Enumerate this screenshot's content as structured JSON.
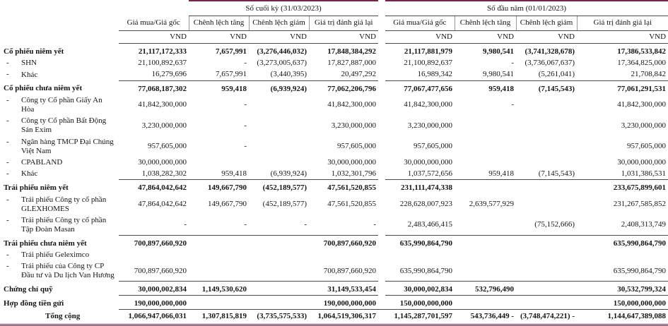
{
  "colors": {
    "accent_line": "#77234a",
    "rule_line": "#4a4a4a"
  },
  "table": {
    "groups": [
      {
        "label": "Số cuối kỳ (31/03/2023)"
      },
      {
        "label": "Số đầu năm (01/01/2023)"
      }
    ],
    "columns": [
      "Giá mua/Giá gốc",
      "Chênh lệch tăng",
      "Chênh lệch giảm",
      "Giá trị đánh giá lại",
      "Giá mua/Giá gốc",
      "Chênh lệch tăng",
      "Chênh lệch giảm",
      "Giá trị đánh giá lại"
    ],
    "unit": "VND",
    "rows": [
      {
        "kind": "group",
        "label": "Cổ phiếu niêm yết",
        "values": [
          "21,117,172,333",
          "7,657,991",
          "(3,276,446,032)",
          "17,848,384,292",
          "21,117,881,979",
          "9,980,541",
          "(3,741,328,678)",
          "17,386,533,842"
        ]
      },
      {
        "kind": "item",
        "label": "SHN",
        "values": [
          "21,100,892,637",
          "-",
          "(3,273,005,637)",
          "17,827,887,000",
          "21,100,892,637",
          "-",
          "(3,736,067,637)",
          "17,364,825,000"
        ]
      },
      {
        "kind": "item",
        "label": "Khác",
        "rule": true,
        "values": [
          "16,279,696",
          "7,657,991",
          "(3,440,395)",
          "20,497,292",
          "16,989,342",
          "9,980,541",
          "(5,261,041)",
          "21,708,842"
        ]
      },
      {
        "kind": "group",
        "label": "Cổ phiếu chưa niêm yết",
        "values": [
          "77,068,187,302",
          "959,418",
          "(6,939,924)",
          "77,062,206,796",
          "77,067,477,656",
          "959,418",
          "(7,145,543)",
          "77,061,291,531"
        ]
      },
      {
        "kind": "item",
        "label": "Công ty Cổ phần Giấy An Hòa",
        "values": [
          "41,842,300,000",
          "-",
          "",
          "41,842,300,000",
          "41,842,300,000",
          "-",
          "",
          "41,842,300,000"
        ]
      },
      {
        "kind": "item",
        "label": "Công ty Cổ phần Bất Động Sản Exim",
        "values": [
          "3,230,000,000",
          "-",
          "",
          "3,230,000,000",
          "3,230,000,000",
          "",
          "",
          "3,230,000,000"
        ]
      },
      {
        "kind": "item",
        "label": "Ngân hàng TMCP Đại Chúng Việt Nam",
        "values": [
          "957,605,000",
          "-",
          "",
          "957,605,000",
          "957,605,000",
          "",
          "",
          "957,605,000"
        ]
      },
      {
        "kind": "item",
        "label": "CPABLAND",
        "values": [
          "30,000,000,000",
          "",
          "",
          "30,000,000,000",
          "30,000,000,000",
          "",
          "",
          "30,000,000,000"
        ]
      },
      {
        "kind": "item",
        "label": "Khác",
        "rule": true,
        "values": [
          "1,038,282,302",
          "959,418",
          "(6,939,924)",
          "1,032,301,796",
          "1,037,572,656",
          "959,418",
          "(7,145,543)",
          "1,031,386,531"
        ]
      },
      {
        "kind": "group",
        "label": "Trái phiếu niêm yết",
        "values": [
          "47,864,042,642",
          "149,667,790",
          "(452,189,577)",
          "47,561,520,855",
          "231,111,474,338",
          "",
          "",
          "233,675,899,601"
        ]
      },
      {
        "kind": "item",
        "label": "Trái phiếu Công ty cổ phần GLEXHOMES",
        "values": [
          "47,864,042,642",
          "149,667,790",
          "(452,189,577)",
          "47,561,520,855",
          "228,628,007,923",
          "2,639,577,929",
          "",
          "231,267,585,852"
        ]
      },
      {
        "kind": "item",
        "label": "Trái phiếu Công ty cổ phần Tập Đoàn Masan",
        "rule": true,
        "values": [
          "-",
          "-",
          "-",
          "-",
          "2,483,466,415",
          "",
          "(75,152,666)",
          "2,408,313,749"
        ]
      },
      {
        "kind": "group",
        "label": "Trái phiếu chưa niêm yết",
        "values": [
          "700,897,660,920",
          "",
          "",
          "700,897,660,920",
          "635,990,864,790",
          "",
          "",
          "635,990,864,790"
        ]
      },
      {
        "kind": "item",
        "label": "Trái phiếu Geleximco",
        "values": [
          "",
          "",
          "",
          "",
          "",
          "",
          "",
          ""
        ]
      },
      {
        "kind": "item",
        "label": "Trái phiếu của Công ty CP Đầu tư và Du lịch Van Hương",
        "rule": true,
        "values": [
          "700,897,660,920",
          "",
          "",
          "700,897,660,920",
          "635,990,864,790",
          "",
          "",
          "635,990,864,790"
        ]
      },
      {
        "kind": "group",
        "label": "Chứng chỉ quỹ",
        "rule": true,
        "values": [
          "30,000,002,834",
          "1,149,530,620",
          "",
          "31,149,533,454",
          "30,000,002,834",
          "532,796,490",
          "",
          "30,532,799,324"
        ]
      },
      {
        "kind": "group",
        "label": "Hợp đồng tiền gửi",
        "rule": true,
        "values": [
          "190,000,000,000",
          "",
          "",
          "190,000,000,000",
          "150,000,000,000",
          "",
          "",
          "150,000,000,000"
        ]
      },
      {
        "kind": "total",
        "label": "Tổng cộng",
        "values": [
          "1,066,947,066,031",
          "1,307,815,819",
          "(3,735,575,533)",
          "1,064,519,306,317",
          "1,145,287,701,597",
          "543,736,449 -",
          "(3,748,474,221) -",
          "1,144,647,389,088"
        ]
      }
    ]
  }
}
